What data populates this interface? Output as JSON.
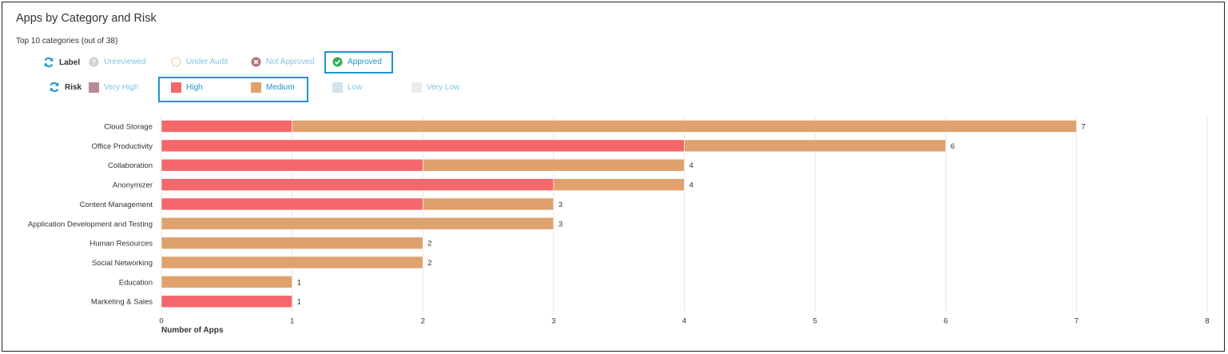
{
  "title": "Apps by Category and Risk",
  "subtitle": "Top 10 categories (out of 38)",
  "legend": {
    "label_heading": "Label",
    "label_items": [
      {
        "name": "Unreviewed",
        "icon": "question-circle-icon",
        "color": "#d0d0d0",
        "active": false
      },
      {
        "name": "Under Audit",
        "icon": "dashed-circle-icon",
        "color": "#f0b56a",
        "active": false
      },
      {
        "name": "Not Approved",
        "icon": "x-circle-icon",
        "color": "#b0787c",
        "active": false
      },
      {
        "name": "Approved",
        "icon": "check-circle-icon",
        "color": "#3aaa5b",
        "active": true
      }
    ],
    "risk_heading": "Risk",
    "risk_items": [
      {
        "name": "Very High",
        "color": "#b98a93",
        "active": false
      },
      {
        "name": "High",
        "color": "#f4676b",
        "active": true
      },
      {
        "name": "Medium",
        "color": "#dfa26e",
        "active": true
      },
      {
        "name": "Low",
        "color": "#d3e3ed",
        "active": false
      },
      {
        "name": "Very Low",
        "color": "#ebebeb",
        "active": false
      }
    ]
  },
  "chart_data": {
    "type": "bar",
    "orientation": "horizontal",
    "stacked": true,
    "categories": [
      "Cloud Storage",
      "Office Productivity",
      "Collaboration",
      "Anonymizer",
      "Content Management",
      "Application Development and Testing",
      "Human Resources",
      "Social Networking",
      "Education",
      "Marketing & Sales"
    ],
    "series": [
      {
        "name": "High",
        "color": "#f4676b",
        "values": [
          1,
          4,
          2,
          3,
          2,
          0,
          0,
          0,
          0,
          1
        ]
      },
      {
        "name": "Medium",
        "color": "#dfa26e",
        "values": [
          6,
          2,
          2,
          1,
          1,
          3,
          2,
          2,
          1,
          0
        ]
      }
    ],
    "totals": [
      7,
      6,
      4,
      4,
      3,
      3,
      2,
      2,
      1,
      1
    ],
    "xlabel": "Number of Apps",
    "xlim": [
      0,
      8
    ],
    "xticks": [
      0,
      1,
      2,
      3,
      4,
      5,
      6,
      7,
      8
    ],
    "grid": true
  }
}
